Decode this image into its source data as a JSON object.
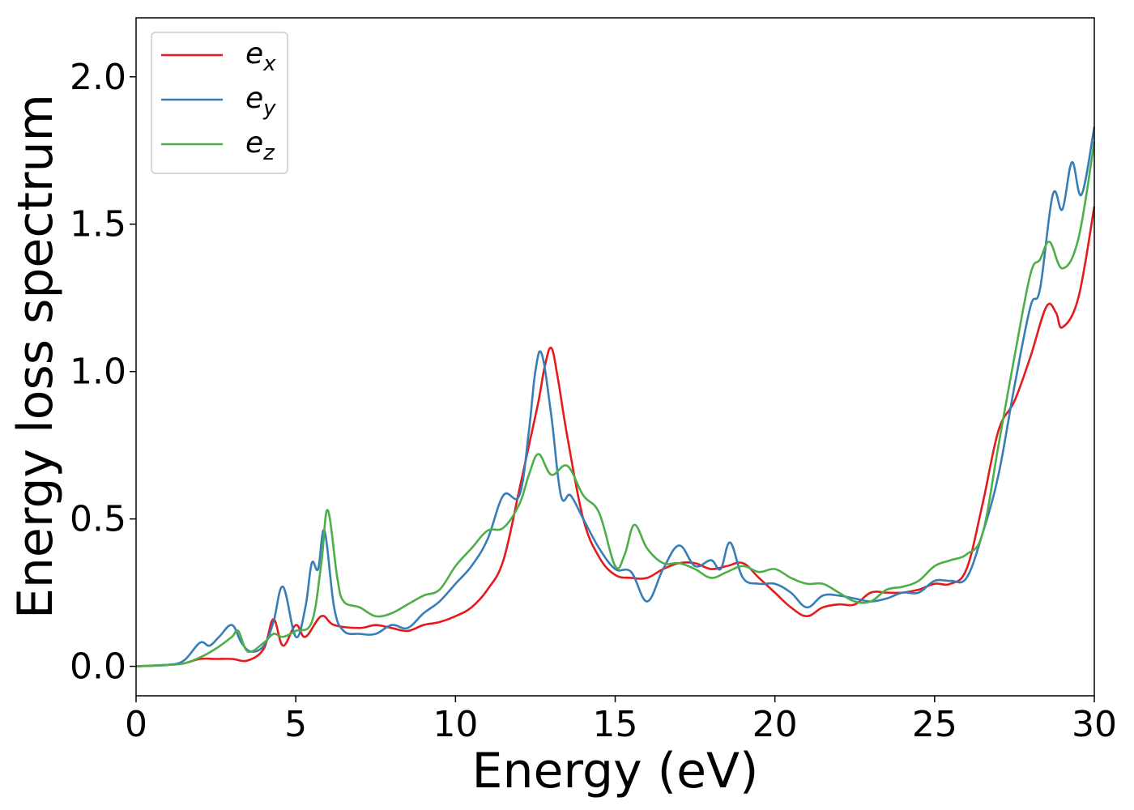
{
  "chart_data": {
    "type": "line",
    "xlabel": "Energy (eV)",
    "ylabel": "Energy loss spectrum",
    "xlim": [
      0,
      30
    ],
    "ylim": [
      -0.1,
      2.2
    ],
    "xticks": [
      0,
      5,
      10,
      15,
      20,
      25,
      30
    ],
    "xtick_labels": [
      "0",
      "5",
      "10",
      "15",
      "20",
      "25",
      "30"
    ],
    "yticks": [
      0.0,
      0.5,
      1.0,
      1.5,
      2.0
    ],
    "ytick_labels": [
      "0.0",
      "0.5",
      "1.0",
      "1.5",
      "2.0"
    ],
    "grid": false,
    "legend_position": "top-left",
    "series": [
      {
        "name": "e_x",
        "legend_base": "e",
        "legend_sub": "x",
        "color": "#e41a1c",
        "x": [
          0,
          1,
          1.5,
          2,
          2.5,
          3,
          3.5,
          4,
          4.3,
          4.6,
          5,
          5.3,
          5.8,
          6.2,
          7,
          7.5,
          8,
          8.5,
          9,
          9.5,
          10,
          10.5,
          11,
          11.5,
          12,
          12.3,
          12.6,
          12.8,
          13,
          13.2,
          13.5,
          14,
          14.5,
          15,
          15.5,
          16,
          16.5,
          17,
          17.5,
          18,
          18.5,
          19,
          19.5,
          20,
          20.5,
          21,
          21.5,
          22,
          22.5,
          23,
          23.5,
          24,
          24.5,
          25,
          25.5,
          26,
          26.5,
          27,
          27.5,
          28,
          28.5,
          28.8,
          29,
          29.5,
          30
        ],
        "y": [
          0.0,
          0.005,
          0.01,
          0.025,
          0.025,
          0.025,
          0.02,
          0.06,
          0.16,
          0.07,
          0.14,
          0.1,
          0.17,
          0.14,
          0.13,
          0.14,
          0.13,
          0.12,
          0.14,
          0.15,
          0.17,
          0.2,
          0.26,
          0.36,
          0.6,
          0.75,
          0.9,
          1.02,
          1.08,
          0.98,
          0.78,
          0.5,
          0.37,
          0.31,
          0.3,
          0.3,
          0.33,
          0.35,
          0.35,
          0.33,
          0.34,
          0.35,
          0.3,
          0.25,
          0.2,
          0.17,
          0.2,
          0.21,
          0.21,
          0.25,
          0.25,
          0.25,
          0.26,
          0.28,
          0.28,
          0.33,
          0.55,
          0.8,
          0.9,
          1.05,
          1.22,
          1.2,
          1.15,
          1.25,
          1.56
        ]
      },
      {
        "name": "e_y",
        "legend_base": "e",
        "legend_sub": "y",
        "color": "#377eb8",
        "x": [
          0,
          1,
          1.5,
          2,
          2.3,
          2.6,
          3,
          3.3,
          3.6,
          4,
          4.3,
          4.6,
          5,
          5.3,
          5.5,
          5.7,
          5.9,
          6.2,
          6.5,
          7,
          7.5,
          8,
          8.5,
          9,
          9.5,
          10,
          10.5,
          11,
          11.5,
          12,
          12.3,
          12.5,
          12.7,
          13,
          13.3,
          13.6,
          14,
          14.5,
          15,
          15.5,
          16,
          16.5,
          17,
          17.5,
          18,
          18.3,
          18.6,
          19,
          19.5,
          20,
          20.5,
          21,
          21.5,
          22,
          22.5,
          23,
          23.5,
          24,
          24.5,
          25,
          25.5,
          26,
          26.5,
          27,
          27.5,
          28,
          28.3,
          28.7,
          29,
          29.3,
          29.6,
          30
        ],
        "y": [
          0.0,
          0.005,
          0.02,
          0.08,
          0.07,
          0.1,
          0.14,
          0.08,
          0.05,
          0.07,
          0.15,
          0.27,
          0.1,
          0.2,
          0.35,
          0.33,
          0.46,
          0.2,
          0.12,
          0.11,
          0.11,
          0.14,
          0.13,
          0.18,
          0.22,
          0.28,
          0.34,
          0.43,
          0.58,
          0.58,
          0.8,
          1.0,
          1.06,
          0.85,
          0.58,
          0.58,
          0.5,
          0.4,
          0.33,
          0.32,
          0.22,
          0.33,
          0.41,
          0.34,
          0.36,
          0.33,
          0.42,
          0.3,
          0.28,
          0.28,
          0.25,
          0.2,
          0.24,
          0.24,
          0.23,
          0.22,
          0.23,
          0.25,
          0.25,
          0.29,
          0.29,
          0.3,
          0.45,
          0.65,
          0.95,
          1.22,
          1.28,
          1.6,
          1.55,
          1.71,
          1.6,
          1.83
        ]
      },
      {
        "name": "e_z",
        "legend_base": "e",
        "legend_sub": "z",
        "color": "#4daf4a",
        "x": [
          0,
          1,
          1.5,
          2,
          2.5,
          3,
          3.2,
          3.5,
          4,
          4.3,
          4.6,
          5,
          5.5,
          5.8,
          6,
          6.3,
          6.5,
          7,
          7.5,
          8,
          8.5,
          9,
          9.5,
          10,
          10.5,
          11,
          11.5,
          12,
          12.3,
          12.6,
          13,
          13.5,
          14,
          14.5,
          15,
          15.3,
          15.6,
          16,
          16.5,
          17,
          17.5,
          18,
          18.5,
          19,
          19.5,
          20,
          20.5,
          21,
          21.5,
          22,
          22.5,
          23,
          23.5,
          24,
          24.5,
          25,
          25.5,
          26,
          26.5,
          27,
          27.5,
          28,
          28.3,
          28.6,
          29,
          29.5,
          30
        ],
        "y": [
          0.0,
          0.005,
          0.01,
          0.03,
          0.06,
          0.1,
          0.12,
          0.05,
          0.08,
          0.11,
          0.1,
          0.12,
          0.15,
          0.35,
          0.53,
          0.3,
          0.22,
          0.2,
          0.17,
          0.18,
          0.21,
          0.24,
          0.26,
          0.34,
          0.4,
          0.46,
          0.47,
          0.55,
          0.65,
          0.72,
          0.65,
          0.68,
          0.58,
          0.52,
          0.34,
          0.38,
          0.48,
          0.4,
          0.35,
          0.35,
          0.33,
          0.3,
          0.32,
          0.34,
          0.32,
          0.33,
          0.3,
          0.28,
          0.28,
          0.25,
          0.22,
          0.22,
          0.26,
          0.27,
          0.29,
          0.34,
          0.36,
          0.38,
          0.45,
          0.75,
          1.05,
          1.33,
          1.38,
          1.44,
          1.35,
          1.45,
          1.78
        ]
      }
    ]
  }
}
